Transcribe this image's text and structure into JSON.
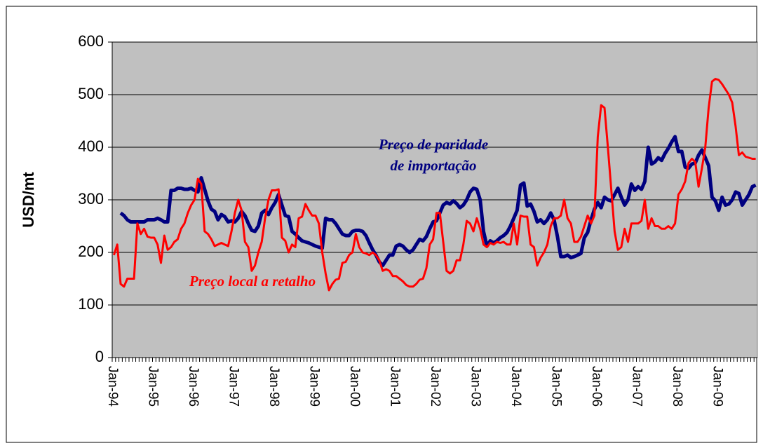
{
  "chart_data": {
    "type": "line",
    "y_label": "USD/mt",
    "ylim": [
      0,
      600
    ],
    "yticks": [
      0,
      100,
      200,
      300,
      400,
      500,
      600
    ],
    "grid": true,
    "categories": [
      "Jan-94",
      null,
      null,
      null,
      null,
      null,
      null,
      null,
      null,
      null,
      null,
      null,
      "Jan-95",
      null,
      null,
      null,
      null,
      null,
      null,
      null,
      null,
      null,
      null,
      null,
      "Jan-96",
      null,
      null,
      null,
      null,
      null,
      null,
      null,
      null,
      null,
      null,
      null,
      "Jan-97",
      null,
      null,
      null,
      null,
      null,
      null,
      null,
      null,
      null,
      null,
      null,
      "Jan-98",
      null,
      null,
      null,
      null,
      null,
      null,
      null,
      null,
      null,
      null,
      null,
      "Jan-99",
      null,
      null,
      null,
      null,
      null,
      null,
      null,
      null,
      null,
      null,
      null,
      "Jan-00",
      null,
      null,
      null,
      null,
      null,
      null,
      null,
      null,
      null,
      null,
      null,
      "Jan-01",
      null,
      null,
      null,
      null,
      null,
      null,
      null,
      null,
      null,
      null,
      null,
      "Jan-02",
      null,
      null,
      null,
      null,
      null,
      null,
      null,
      null,
      null,
      null,
      null,
      "Jan-03",
      null,
      null,
      null,
      null,
      null,
      null,
      null,
      null,
      null,
      null,
      null,
      "Jan-04",
      null,
      null,
      null,
      null,
      null,
      null,
      null,
      null,
      null,
      null,
      null,
      "Jan-05",
      null,
      null,
      null,
      null,
      null,
      null,
      null,
      null,
      null,
      null,
      null,
      "Jan-06",
      null,
      null,
      null,
      null,
      null,
      null,
      null,
      null,
      null,
      null,
      null,
      "Jan-07",
      null,
      null,
      null,
      null,
      null,
      null,
      null,
      null,
      null,
      null,
      null,
      "Jan-08",
      null,
      null,
      null,
      null,
      null,
      null,
      null,
      null,
      null,
      null,
      null,
      "Jan-09",
      null,
      null,
      null,
      null,
      null,
      null,
      null,
      null,
      null,
      null,
      null
    ],
    "series": [
      {
        "name": [
          "Preço de paridade",
          "de importação"
        ],
        "color": "#000080",
        "width": 5,
        "values": [
          null,
          null,
          275,
          270,
          262,
          258,
          258,
          258,
          258,
          258,
          262,
          262,
          262,
          265,
          262,
          258,
          258,
          318,
          318,
          322,
          322,
          320,
          320,
          322,
          318,
          315,
          342,
          320,
          298,
          282,
          278,
          262,
          272,
          268,
          258,
          260,
          258,
          265,
          278,
          270,
          255,
          242,
          240,
          250,
          275,
          280,
          272,
          285,
          295,
          310,
          290,
          270,
          268,
          240,
          235,
          228,
          222,
          220,
          218,
          215,
          212,
          210,
          208,
          265,
          262,
          262,
          255,
          245,
          235,
          232,
          232,
          240,
          242,
          242,
          240,
          232,
          218,
          205,
          195,
          182,
          175,
          185,
          195,
          195,
          212,
          215,
          212,
          205,
          200,
          205,
          215,
          225,
          222,
          230,
          245,
          258,
          260,
          275,
          290,
          295,
          292,
          298,
          293,
          285,
          290,
          300,
          315,
          322,
          320,
          300,
          240,
          212,
          222,
          218,
          222,
          228,
          232,
          238,
          250,
          265,
          280,
          328,
          332,
          288,
          292,
          278,
          258,
          262,
          255,
          262,
          275,
          262,
          230,
          192,
          192,
          195,
          190,
          192,
          195,
          198,
          228,
          238,
          262,
          282,
          295,
          285,
          305,
          300,
          298,
          310,
          322,
          305,
          290,
          300,
          330,
          318,
          325,
          320,
          335,
          400,
          368,
          372,
          380,
          375,
          388,
          398,
          410,
          420,
          392,
          392,
          362,
          360,
          368,
          370,
          385,
          395,
          380,
          365,
          305,
          298,
          280,
          305,
          290,
          292,
          300,
          315,
          312,
          290,
          300,
          310,
          325,
          328
        ]
      },
      {
        "name": [
          "Preço local a retalho"
        ],
        "color": "#ff0000",
        "width": 3,
        "values": [
          195,
          215,
          140,
          135,
          150,
          150,
          150,
          255,
          235,
          245,
          230,
          228,
          228,
          215,
          180,
          232,
          205,
          210,
          220,
          225,
          245,
          255,
          275,
          290,
          300,
          340,
          330,
          240,
          235,
          225,
          212,
          215,
          218,
          215,
          212,
          240,
          275,
          300,
          280,
          220,
          210,
          165,
          175,
          200,
          220,
          265,
          300,
          318,
          318,
          320,
          228,
          222,
          200,
          215,
          210,
          265,
          268,
          292,
          280,
          270,
          270,
          255,
          200,
          160,
          128,
          140,
          148,
          150,
          180,
          182,
          195,
          200,
          235,
          210,
          200,
          198,
          195,
          200,
          195,
          185,
          165,
          168,
          165,
          155,
          155,
          150,
          145,
          138,
          135,
          135,
          140,
          148,
          150,
          170,
          215,
          225,
          275,
          275,
          220,
          165,
          160,
          165,
          185,
          185,
          215,
          260,
          255,
          240,
          265,
          245,
          215,
          210,
          218,
          215,
          220,
          218,
          220,
          215,
          215,
          255,
          215,
          270,
          268,
          268,
          215,
          210,
          175,
          190,
          200,
          215,
          250,
          265,
          265,
          270,
          300,
          265,
          255,
          220,
          220,
          230,
          250,
          270,
          255,
          270,
          420,
          480,
          475,
          400,
          320,
          240,
          205,
          210,
          245,
          220,
          255,
          255,
          255,
          260,
          300,
          245,
          265,
          250,
          250,
          245,
          245,
          250,
          245,
          255,
          310,
          320,
          335,
          370,
          378,
          372,
          325,
          360,
          400,
          475,
          525,
          530,
          528,
          520,
          510,
          500,
          485,
          440,
          385,
          390,
          382,
          380,
          378,
          378
        ]
      }
    ]
  }
}
